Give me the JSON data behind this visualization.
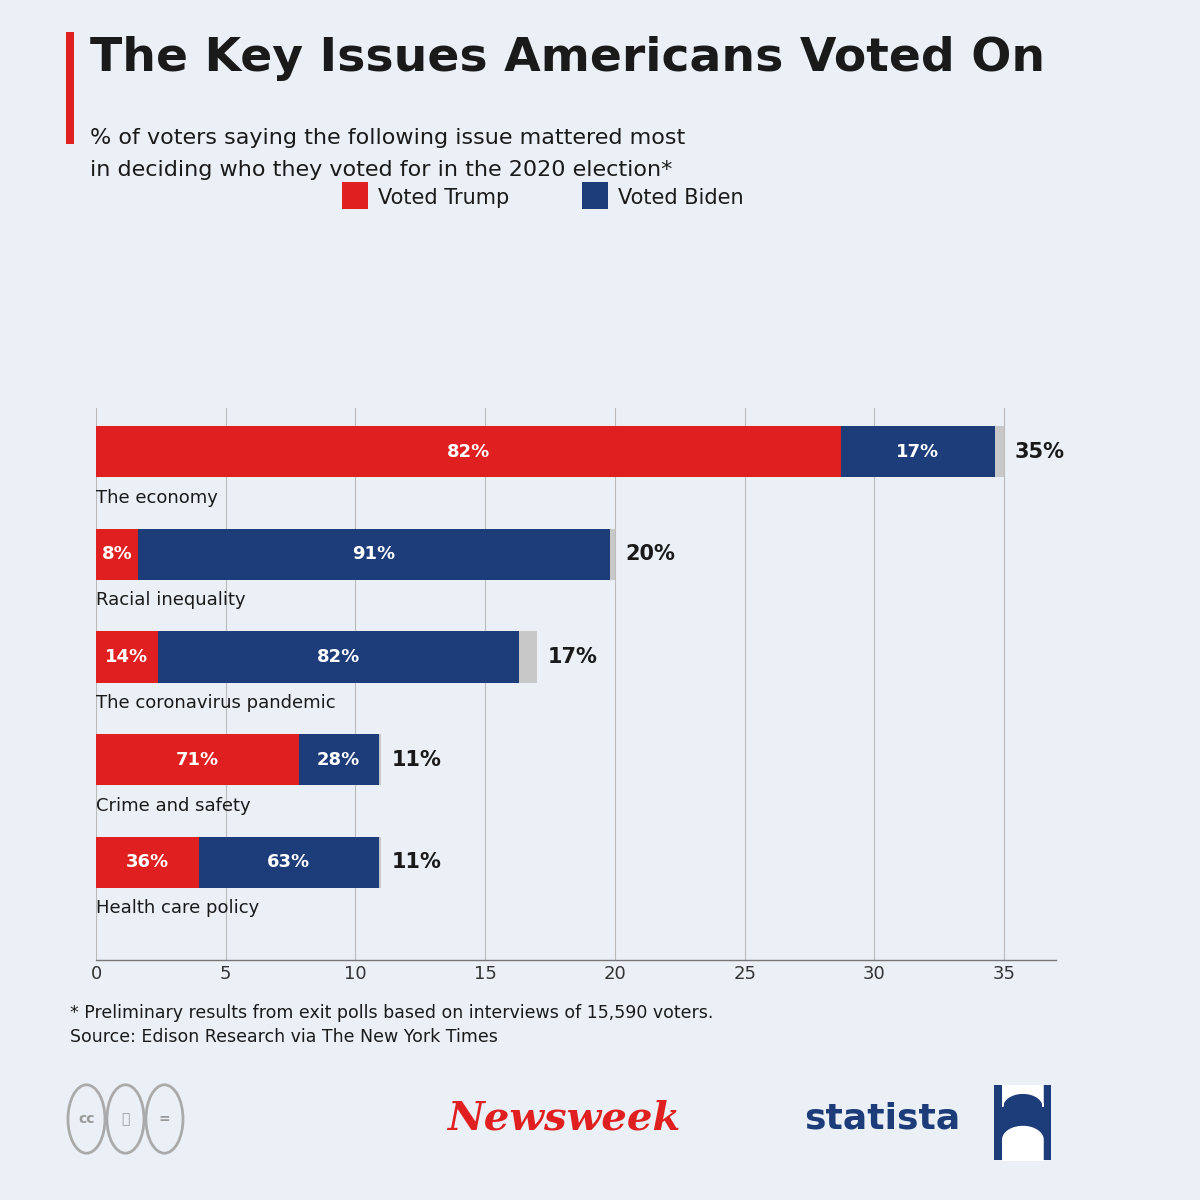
{
  "title": "The Key Issues Americans Voted On",
  "subtitle_line1": "% of voters saying the following issue mattered most",
  "subtitle_line2": "in deciding who they voted for in the 2020 election*",
  "categories": [
    "The economy",
    "Racial inequality",
    "The coronavirus pandemic",
    "Crime and safety",
    "Health care policy"
  ],
  "trump_pct": [
    82,
    8,
    14,
    71,
    36
  ],
  "biden_pct": [
    17,
    91,
    82,
    28,
    63
  ],
  "issue_pct": [
    35,
    20,
    17,
    11,
    11
  ],
  "bar_values": [
    35,
    20,
    17,
    11,
    11
  ],
  "trump_color": "#E02020",
  "biden_color": "#1D3C7A",
  "gray_color": "#C8C8C8",
  "bg_color": "#EBF0F7",
  "text_color": "#1A1A1A",
  "footnote1": "* Preliminary results from exit polls based on interviews of 15,590 voters.",
  "footnote2": "Source: Edison Research via The New York Times",
  "xlim": [
    0,
    37
  ],
  "xticks": [
    0,
    5,
    10,
    15,
    20,
    25,
    30,
    35
  ]
}
